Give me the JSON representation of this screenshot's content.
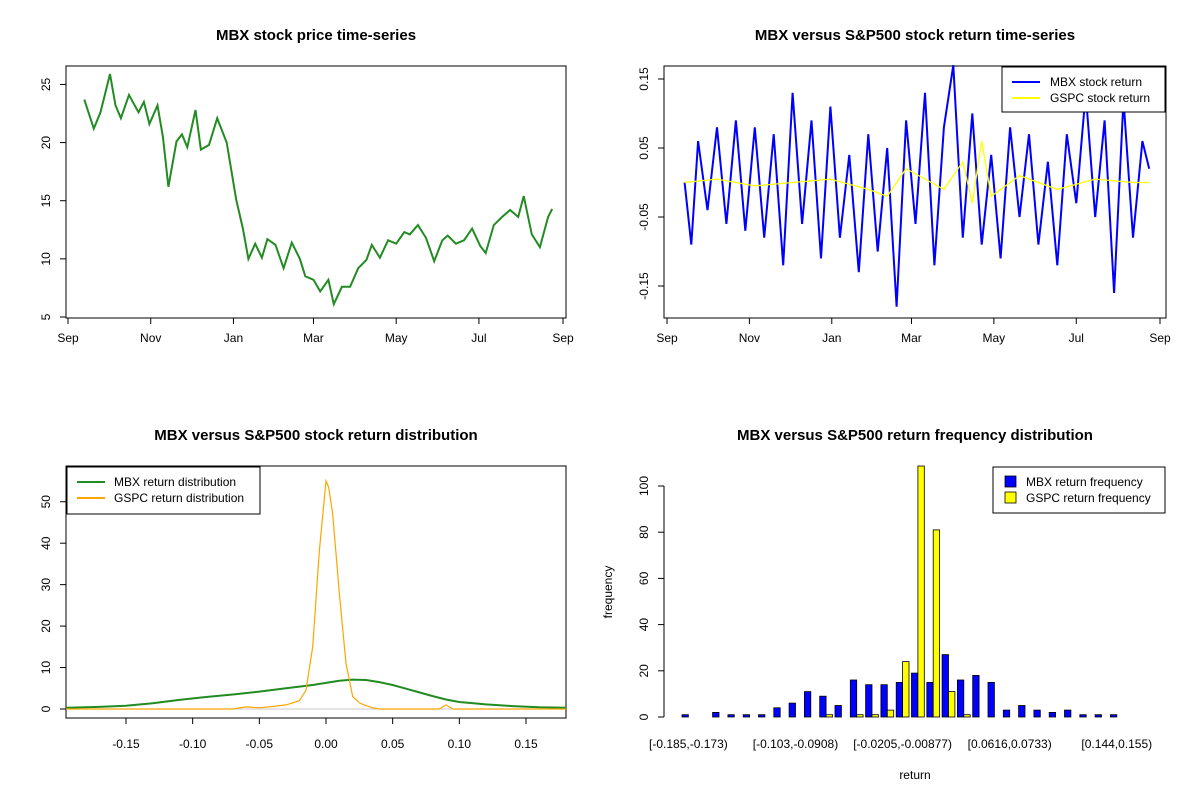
{
  "chart_data": [
    {
      "type": "line",
      "title": "MBX stock price time-series",
      "xlabel": "",
      "ylabel": "",
      "x_ticks": [
        "Sep",
        "Nov",
        "Jan",
        "Mar",
        "May",
        "Jul",
        "Sep"
      ],
      "y_ticks": [
        "5",
        "10",
        "15",
        "20",
        "25"
      ],
      "ylim": [
        5,
        26.5
      ],
      "series": [
        {
          "color": "#228b22",
          "x": [
            "2017-09-13",
            "2017-09-20",
            "2017-09-25",
            "2017-10-02",
            "2017-10-06",
            "2017-10-10",
            "2017-10-16",
            "2017-10-23",
            "2017-10-27",
            "2017-10-31",
            "2017-11-06",
            "2017-11-10",
            "2017-11-14",
            "2017-11-20",
            "2017-11-24",
            "2017-11-28",
            "2017-12-04",
            "2017-12-08",
            "2017-12-14",
            "2017-12-20",
            "2017-12-27",
            "2018-01-03",
            "2018-01-08",
            "2018-01-12",
            "2018-01-17",
            "2018-01-22",
            "2018-01-26",
            "2018-02-01",
            "2018-02-07",
            "2018-02-13",
            "2018-02-19",
            "2018-02-23",
            "2018-03-01",
            "2018-03-06",
            "2018-03-12",
            "2018-03-16",
            "2018-03-22",
            "2018-03-28",
            "2018-04-03",
            "2018-04-09",
            "2018-04-13",
            "2018-04-19",
            "2018-04-25",
            "2018-05-01",
            "2018-05-07",
            "2018-05-11",
            "2018-05-17",
            "2018-05-23",
            "2018-05-29",
            "2018-06-04",
            "2018-06-08",
            "2018-06-14",
            "2018-06-20",
            "2018-06-26",
            "2018-07-02",
            "2018-07-06",
            "2018-07-12",
            "2018-07-18",
            "2018-07-24",
            "2018-07-30",
            "2018-08-03",
            "2018-08-09",
            "2018-08-15",
            "2018-08-21",
            "2018-08-24"
          ],
          "y": [
            23.7,
            21.2,
            22.6,
            25.9,
            23.2,
            22.1,
            24.1,
            22.6,
            23.5,
            21.6,
            23.2,
            20.5,
            16.2,
            20.1,
            20.7,
            19.6,
            22.8,
            19.4,
            19.8,
            22.1,
            20.0,
            15.1,
            12.6,
            10.0,
            11.3,
            10.1,
            11.7,
            11.2,
            9.2,
            11.4,
            10.0,
            8.5,
            8.2,
            7.2,
            8.2,
            6.1,
            7.6,
            7.6,
            9.2,
            9.9,
            11.2,
            10.1,
            11.6,
            11.3,
            12.3,
            12.1,
            12.9,
            11.8,
            9.8,
            11.6,
            12.0,
            11.3,
            11.6,
            12.6,
            11.1,
            10.5,
            12.9,
            13.6,
            14.2,
            13.6,
            15.4,
            12.1,
            11.0,
            13.6,
            14.3
          ]
        }
      ]
    },
    {
      "type": "line",
      "title": "MBX versus S&P500 stock return time-series",
      "xlabel": "",
      "ylabel": "",
      "x_ticks": [
        "Sep",
        "Nov",
        "Jan",
        "Mar",
        "May",
        "Jul",
        "Sep"
      ],
      "y_ticks": [
        "-0.15",
        "-0.05",
        "0.05",
        "0.15"
      ],
      "ylim": [
        -0.19,
        0.18
      ],
      "legend": {
        "position": "top-right",
        "entries": [
          "MBX stock return",
          "GSPC stock return"
        ]
      },
      "series": [
        {
          "name": "MBX stock return",
          "color": "#0000ff",
          "x": [
            "2017-09-14",
            "2017-09-19",
            "2017-09-24",
            "2017-10-01",
            "2017-10-08",
            "2017-10-15",
            "2017-10-22",
            "2017-10-29",
            "2017-11-05",
            "2017-11-12",
            "2017-11-19",
            "2017-11-26",
            "2017-12-03",
            "2017-12-10",
            "2017-12-17",
            "2017-12-24",
            "2017-12-31",
            "2018-01-07",
            "2018-01-14",
            "2018-01-21",
            "2018-01-28",
            "2018-02-04",
            "2018-02-11",
            "2018-02-18",
            "2018-02-25",
            "2018-03-04",
            "2018-03-11",
            "2018-03-18",
            "2018-03-25",
            "2018-04-01",
            "2018-04-08",
            "2018-04-15",
            "2018-04-22",
            "2018-04-29",
            "2018-05-06",
            "2018-05-13",
            "2018-05-20",
            "2018-05-27",
            "2018-06-03",
            "2018-06-10",
            "2018-06-17",
            "2018-06-24",
            "2018-07-01",
            "2018-07-08",
            "2018-07-15",
            "2018-07-22",
            "2018-07-29",
            "2018-08-05",
            "2018-08-12",
            "2018-08-19",
            "2018-08-24"
          ],
          "y": [
            0.0,
            -0.09,
            0.06,
            -0.04,
            0.08,
            -0.06,
            0.09,
            -0.07,
            0.08,
            -0.08,
            0.07,
            -0.12,
            0.13,
            -0.06,
            0.09,
            -0.11,
            0.11,
            -0.08,
            0.04,
            -0.13,
            0.07,
            -0.1,
            0.05,
            -0.18,
            0.09,
            -0.06,
            0.13,
            -0.12,
            0.08,
            0.17,
            -0.08,
            0.1,
            -0.09,
            0.04,
            -0.11,
            0.08,
            -0.05,
            0.07,
            -0.09,
            0.03,
            -0.12,
            0.07,
            -0.03,
            0.13,
            -0.05,
            0.09,
            -0.16,
            0.12,
            -0.08,
            0.06,
            0.02
          ]
        },
        {
          "name": "GSPC stock return",
          "color": "#ffff00",
          "x": [
            "2017-09-14",
            "2017-10-08",
            "2017-11-05",
            "2017-12-03",
            "2017-12-31",
            "2018-01-28",
            "2018-02-11",
            "2018-02-25",
            "2018-03-25",
            "2018-04-08",
            "2018-04-15",
            "2018-04-22",
            "2018-04-29",
            "2018-05-20",
            "2018-06-17",
            "2018-07-15",
            "2018-08-12",
            "2018-08-24"
          ],
          "y": [
            0.0,
            0.005,
            -0.005,
            0.0,
            0.005,
            -0.01,
            -0.02,
            0.02,
            -0.01,
            0.03,
            -0.03,
            0.06,
            -0.02,
            0.01,
            -0.01,
            0.005,
            0.0,
            0.0
          ]
        }
      ]
    },
    {
      "type": "line",
      "title": "MBX versus S&P500 stock return distribution",
      "xlabel": "",
      "ylabel": "",
      "x_ticks": [
        "-0.15",
        "-0.10",
        "-0.05",
        "0.00",
        "0.05",
        "0.10",
        "0.15"
      ],
      "y_ticks": [
        "0",
        "10",
        "20",
        "30",
        "40",
        "50"
      ],
      "xlim": [
        -0.195,
        0.18
      ],
      "ylim": [
        -1.5,
        57
      ],
      "legend": {
        "position": "top-left",
        "entries": [
          "MBX return distribution",
          "GSPC return distribution"
        ]
      },
      "series": [
        {
          "name": "MBX return distribution",
          "color": "#228b22",
          "x": [
            -0.195,
            -0.17,
            -0.15,
            -0.13,
            -0.11,
            -0.09,
            -0.07,
            -0.05,
            -0.03,
            -0.01,
            0.0,
            0.01,
            0.02,
            0.03,
            0.04,
            0.05,
            0.06,
            0.07,
            0.08,
            0.09,
            0.1,
            0.12,
            0.14,
            0.16,
            0.18
          ],
          "y": [
            0.3,
            0.5,
            0.8,
            1.4,
            2.2,
            2.9,
            3.5,
            4.2,
            5.0,
            5.8,
            6.3,
            6.8,
            7.1,
            7.0,
            6.5,
            5.8,
            4.9,
            4.0,
            3.1,
            2.3,
            1.7,
            1.1,
            0.7,
            0.4,
            0.3
          ]
        },
        {
          "name": "GSPC return distribution",
          "color": "#ffa500",
          "x": [
            -0.195,
            -0.07,
            -0.06,
            -0.05,
            -0.04,
            -0.03,
            -0.02,
            -0.015,
            -0.01,
            -0.005,
            0.0,
            0.002,
            0.005,
            0.01,
            0.015,
            0.02,
            0.025,
            0.03,
            0.035,
            0.04,
            0.085,
            0.09,
            0.095,
            0.18
          ],
          "y": [
            0.0,
            0.0,
            0.5,
            0.3,
            0.6,
            1.0,
            2.0,
            4.5,
            15.0,
            38.0,
            55.0,
            53.5,
            47.0,
            28.0,
            11.0,
            3.0,
            1.5,
            0.8,
            0.3,
            0.0,
            0.0,
            1.0,
            0.0,
            0.0
          ]
        }
      ]
    },
    {
      "type": "bar",
      "title": "MBX versus S&P500 return frequency distribution",
      "xlabel": "return",
      "ylabel": "frequency",
      "x_tick_labels": [
        "[-0.185,-0.173)",
        "[-0.103,-0.0908)",
        "[-0.0205,-0.00877)",
        "[0.0616,0.0733)",
        "[0.144,0.155)"
      ],
      "y_ticks": [
        "0",
        "20",
        "40",
        "60",
        "80",
        "100"
      ],
      "ylim": [
        0,
        110
      ],
      "legend": {
        "position": "top-right",
        "entries": [
          "MBX return frequency",
          "GSPC return frequency"
        ]
      },
      "categories": [
        "b1",
        "b2",
        "b3",
        "b4",
        "b5",
        "b6",
        "b7",
        "b8",
        "b9",
        "b10",
        "b11",
        "b12",
        "b13",
        "b14",
        "b15",
        "b16",
        "b17",
        "b18",
        "b19",
        "b20",
        "b21",
        "b22",
        "b23",
        "b24",
        "b25",
        "b26",
        "b27",
        "b28",
        "b29",
        "b30",
        "b31",
        "b32"
      ],
      "series": [
        {
          "name": "MBX return frequency",
          "color": "#0000ff",
          "values": [
            1,
            0,
            2,
            1,
            1,
            1,
            4,
            6,
            11,
            9,
            5,
            16,
            14,
            14,
            15,
            19,
            15,
            27,
            16,
            18,
            15,
            3,
            5,
            3,
            2,
            3,
            1,
            1,
            1,
            0,
            0,
            0
          ]
        },
        {
          "name": "GSPC return frequency",
          "color": "#ffff00",
          "values": [
            0,
            0,
            0,
            0,
            0,
            0,
            0,
            0,
            0,
            1,
            0,
            1,
            1,
            3,
            24,
            110,
            81,
            11,
            1,
            0,
            0,
            0,
            0,
            0,
            0,
            0,
            0,
            0,
            0,
            0,
            0,
            0
          ]
        }
      ]
    }
  ]
}
